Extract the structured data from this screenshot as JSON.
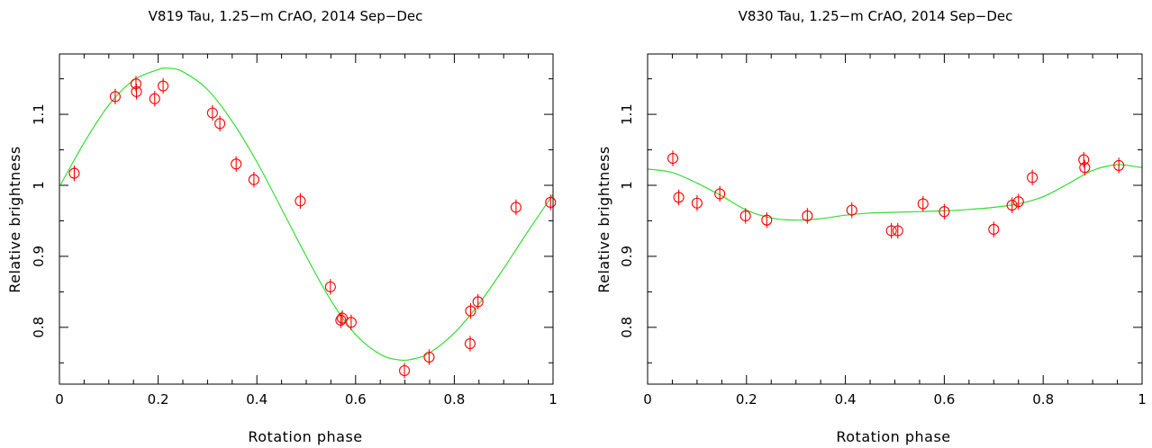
{
  "chart_data": [
    {
      "type": "scatter",
      "title": "V819 Tau, 1.25−m CrAO, 2014 Sep−Dec",
      "xlabel": "Rotation phase",
      "ylabel": "Relative brightness",
      "xlim": [
        0,
        1
      ],
      "ylim": [
        0.72,
        1.185
      ],
      "xticks": [
        0,
        0.2,
        0.4,
        0.6,
        0.8,
        1
      ],
      "xtick_labels": [
        "0",
        "0.2",
        "0.4",
        "0.6",
        "0.8",
        "1"
      ],
      "yticks": [
        0.8,
        0.9,
        1.0,
        1.1
      ],
      "ytick_labels": [
        "0.8",
        "0.9",
        "1",
        "1.1"
      ],
      "grid": false,
      "marker_color": "#ff0000",
      "fit_color": "#33dd33",
      "points": {
        "x": [
          0.03,
          0.113,
          0.155,
          0.156,
          0.193,
          0.21,
          0.31,
          0.325,
          0.358,
          0.394,
          0.488,
          0.549,
          0.57,
          0.573,
          0.591,
          0.699,
          0.749,
          0.832,
          0.833,
          0.848,
          0.925,
          0.995
        ],
        "y": [
          1.017,
          1.125,
          1.143,
          1.132,
          1.122,
          1.14,
          1.102,
          1.087,
          1.03,
          1.008,
          0.978,
          0.857,
          0.81,
          0.813,
          0.807,
          0.739,
          0.758,
          0.777,
          0.823,
          0.836,
          0.969,
          0.976
        ],
        "yerr": 0.011
      },
      "fit_curve": {
        "x": [
          0,
          0.05,
          0.1,
          0.15,
          0.2,
          0.22,
          0.25,
          0.3,
          0.35,
          0.4,
          0.45,
          0.5,
          0.55,
          0.6,
          0.65,
          0.69,
          0.72,
          0.75,
          0.8,
          0.85,
          0.9,
          0.95,
          1.0
        ],
        "y": [
          0.998,
          1.06,
          1.113,
          1.148,
          1.163,
          1.165,
          1.16,
          1.135,
          1.09,
          1.033,
          0.967,
          0.9,
          0.838,
          0.79,
          0.762,
          0.754,
          0.756,
          0.764,
          0.792,
          0.833,
          0.883,
          0.936,
          0.987
        ]
      }
    },
    {
      "type": "scatter",
      "title": "V830 Tau, 1.25−m CrAO, 2014 Sep−Dec",
      "xlabel": "Rotation phase",
      "ylabel": "Relative brightness",
      "xlim": [
        0,
        1
      ],
      "ylim": [
        0.72,
        1.185
      ],
      "xticks": [
        0,
        0.2,
        0.4,
        0.6,
        0.8,
        1
      ],
      "xtick_labels": [
        "0",
        "0.2",
        "0.4",
        "0.6",
        "0.8",
        "1"
      ],
      "yticks": [
        0.8,
        0.9,
        1.0,
        1.1
      ],
      "ytick_labels": [
        "0.8",
        "0.9",
        "1",
        "1.1"
      ],
      "grid": false,
      "marker_color": "#ff0000",
      "fit_color": "#33dd33",
      "points": {
        "x": [
          0.051,
          0.063,
          0.1,
          0.146,
          0.198,
          0.241,
          0.323,
          0.413,
          0.493,
          0.506,
          0.557,
          0.6,
          0.7,
          0.737,
          0.75,
          0.778,
          0.882,
          0.884,
          0.953
        ],
        "y": [
          1.038,
          0.983,
          0.975,
          0.988,
          0.957,
          0.951,
          0.957,
          0.965,
          0.936,
          0.936,
          0.974,
          0.963,
          0.938,
          0.972,
          0.977,
          1.011,
          1.036,
          1.025,
          1.028
        ],
        "yerr": 0.011
      },
      "fit_curve": {
        "x": [
          0,
          0.05,
          0.1,
          0.15,
          0.2,
          0.25,
          0.3,
          0.35,
          0.4,
          0.45,
          0.5,
          0.55,
          0.6,
          0.65,
          0.7,
          0.75,
          0.8,
          0.85,
          0.9,
          0.95,
          1.0
        ],
        "y": [
          1.023,
          1.018,
          1.003,
          0.985,
          0.965,
          0.954,
          0.951,
          0.953,
          0.958,
          0.961,
          0.962,
          0.963,
          0.964,
          0.966,
          0.969,
          0.974,
          0.984,
          1.002,
          1.021,
          1.029,
          1.025
        ]
      }
    }
  ]
}
